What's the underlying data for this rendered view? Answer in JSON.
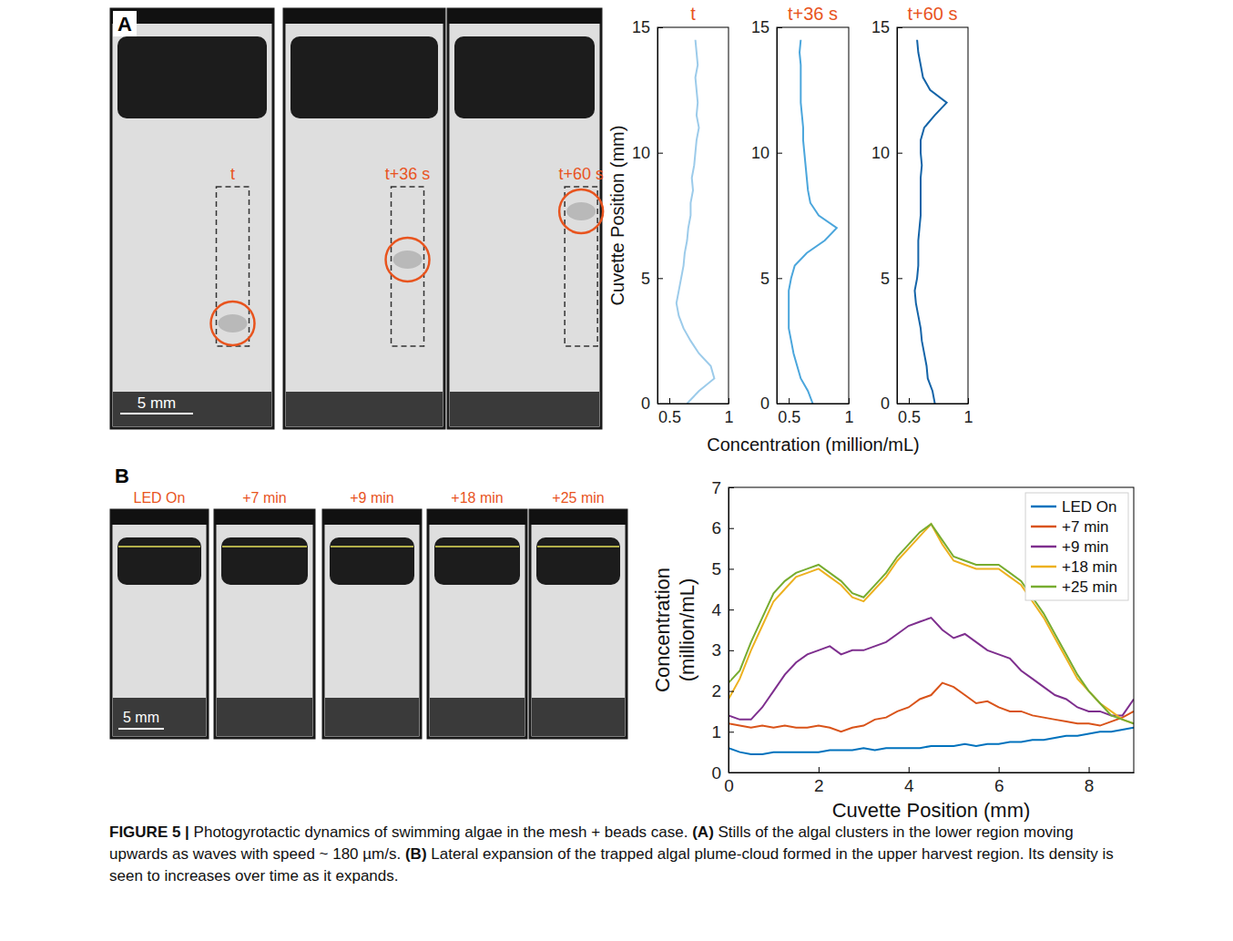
{
  "figure": {
    "panel_a": {
      "letter": "A",
      "stills": [
        "t",
        "t+36 s",
        "t+60 s"
      ],
      "scale_bar": "5 mm"
    },
    "panel_b": {
      "letter": "B",
      "stills": [
        "LED On",
        "+7 min",
        "+9 min",
        "+18 min",
        "+25 min"
      ],
      "scale_bar": "5 mm"
    },
    "caption": [
      "FIGURE 5 |",
      " Photogyrotactic dynamics of swimming algae in the mesh + beads case. ",
      "(A)",
      " Stills of the algal clusters in the lower region moving upwards as waves with speed ~ 180 µm/s. ",
      "(B)",
      " Lateral expansion of the trapped algal plume-cloud formed in the upper harvest region. Its density is seen to increases over time as it expands."
    ]
  },
  "chart_data": [
    {
      "type": "line",
      "orientation": "horizontal",
      "title": "t",
      "y_label": "Cuvette Position (mm)",
      "y": [
        0,
        0.5,
        1,
        1.5,
        2,
        2.5,
        3,
        3.5,
        4,
        4.5,
        5,
        5.5,
        6,
        6.5,
        7,
        7.5,
        8,
        8.5,
        9,
        9.5,
        10,
        10.5,
        11,
        11.5,
        12,
        12.5,
        13,
        13.5,
        14,
        14.5
      ],
      "series": [
        {
          "color": "#9ccbea",
          "values": [
            0.65,
            0.75,
            0.88,
            0.85,
            0.75,
            0.68,
            0.62,
            0.58,
            0.56,
            0.58,
            0.6,
            0.62,
            0.63,
            0.65,
            0.66,
            0.68,
            0.68,
            0.7,
            0.69,
            0.71,
            0.72,
            0.73,
            0.75,
            0.73,
            0.74,
            0.73,
            0.72,
            0.74,
            0.73,
            0.72
          ]
        }
      ],
      "xlim": [
        0.4,
        1
      ],
      "xticks": [
        0.5,
        1
      ],
      "ylim": [
        0,
        15
      ],
      "yticks": [
        0,
        5,
        10,
        15
      ]
    },
    {
      "type": "line",
      "orientation": "horizontal",
      "title": "t+36 s",
      "x_label": "Concentration (million/mL)",
      "y": [
        0,
        0.5,
        1,
        1.5,
        2,
        2.5,
        3,
        3.5,
        4,
        4.5,
        5,
        5.5,
        6,
        6.5,
        7,
        7.5,
        8,
        8.5,
        9,
        9.5,
        10,
        10.5,
        11,
        11.5,
        12,
        12.5,
        13,
        13.5,
        14,
        14.5
      ],
      "series": [
        {
          "color": "#4ba6dc",
          "values": [
            0.7,
            0.66,
            0.6,
            0.57,
            0.54,
            0.52,
            0.5,
            0.5,
            0.5,
            0.5,
            0.52,
            0.55,
            0.65,
            0.8,
            0.9,
            0.75,
            0.68,
            0.66,
            0.65,
            0.64,
            0.63,
            0.62,
            0.62,
            0.61,
            0.6,
            0.6,
            0.6,
            0.6,
            0.59,
            0.6
          ]
        }
      ],
      "xlim": [
        0.4,
        1
      ],
      "xticks": [
        0.5,
        1
      ],
      "ylim": [
        0,
        15
      ],
      "yticks": [
        0,
        5,
        10,
        15
      ]
    },
    {
      "type": "line",
      "orientation": "horizontal",
      "title": "t+60 s",
      "y": [
        0,
        0.5,
        1,
        1.5,
        2,
        2.5,
        3,
        3.5,
        4,
        4.5,
        5,
        5.5,
        6,
        6.5,
        7,
        7.5,
        8,
        8.5,
        9,
        9.5,
        10,
        10.5,
        11,
        11.5,
        12,
        12.5,
        13,
        13.5,
        14,
        14.5
      ],
      "series": [
        {
          "color": "#1464a8",
          "values": [
            0.72,
            0.7,
            0.66,
            0.65,
            0.63,
            0.61,
            0.6,
            0.58,
            0.56,
            0.55,
            0.57,
            0.58,
            0.58,
            0.58,
            0.59,
            0.6,
            0.6,
            0.6,
            0.6,
            0.61,
            0.6,
            0.6,
            0.63,
            0.72,
            0.82,
            0.68,
            0.62,
            0.6,
            0.58,
            0.57
          ]
        }
      ],
      "xlim": [
        0.4,
        1
      ],
      "xticks": [
        0.5,
        1
      ],
      "ylim": [
        0,
        15
      ],
      "yticks": [
        0,
        5,
        10,
        15
      ]
    },
    {
      "type": "line",
      "x_label": "Cuvette Position (mm)",
      "y_label": "Concentration (million/mL)",
      "x": [
        0,
        0.25,
        0.5,
        0.75,
        1,
        1.25,
        1.5,
        1.75,
        2,
        2.25,
        2.5,
        2.75,
        3,
        3.25,
        3.5,
        3.75,
        4,
        4.25,
        4.5,
        4.75,
        5,
        5.25,
        5.5,
        5.75,
        6,
        6.25,
        6.5,
        6.75,
        7,
        7.25,
        7.5,
        7.75,
        8,
        8.25,
        8.5,
        8.75,
        9
      ],
      "series": [
        {
          "name": "LED On",
          "color": "#0072bd",
          "values": [
            0.6,
            0.5,
            0.45,
            0.45,
            0.5,
            0.5,
            0.5,
            0.5,
            0.5,
            0.55,
            0.55,
            0.55,
            0.6,
            0.55,
            0.6,
            0.6,
            0.6,
            0.6,
            0.65,
            0.65,
            0.65,
            0.7,
            0.65,
            0.7,
            0.7,
            0.75,
            0.75,
            0.8,
            0.8,
            0.85,
            0.9,
            0.9,
            0.95,
            1.0,
            1.0,
            1.05,
            1.1
          ]
        },
        {
          "name": "+7 min",
          "color": "#d95319",
          "values": [
            1.2,
            1.15,
            1.1,
            1.15,
            1.1,
            1.15,
            1.1,
            1.1,
            1.15,
            1.1,
            1.0,
            1.1,
            1.15,
            1.3,
            1.35,
            1.5,
            1.6,
            1.8,
            1.9,
            2.2,
            2.1,
            1.9,
            1.7,
            1.75,
            1.6,
            1.5,
            1.5,
            1.4,
            1.35,
            1.3,
            1.25,
            1.2,
            1.2,
            1.15,
            1.25,
            1.35,
            1.5
          ]
        },
        {
          "name": "+9 min",
          "color": "#7e2f8e",
          "values": [
            1.4,
            1.3,
            1.3,
            1.6,
            2.0,
            2.4,
            2.7,
            2.9,
            3.0,
            3.1,
            2.9,
            3.0,
            3.0,
            3.1,
            3.2,
            3.4,
            3.6,
            3.7,
            3.8,
            3.5,
            3.3,
            3.4,
            3.2,
            3.0,
            2.9,
            2.8,
            2.5,
            2.3,
            2.1,
            1.9,
            1.8,
            1.6,
            1.5,
            1.5,
            1.4,
            1.4,
            1.8
          ]
        },
        {
          "name": "+18 min",
          "color": "#edb120",
          "values": [
            1.8,
            2.3,
            3.0,
            3.6,
            4.2,
            4.5,
            4.8,
            4.9,
            5.0,
            4.8,
            4.6,
            4.3,
            4.2,
            4.5,
            4.8,
            5.2,
            5.5,
            5.8,
            6.1,
            5.6,
            5.2,
            5.1,
            5.0,
            5.0,
            5.0,
            4.8,
            4.6,
            4.2,
            3.8,
            3.3,
            2.8,
            2.3,
            2.0,
            1.7,
            1.5,
            1.3,
            1.2
          ]
        },
        {
          "name": "+25 min",
          "color": "#77ac30",
          "values": [
            2.2,
            2.5,
            3.2,
            3.8,
            4.4,
            4.7,
            4.9,
            5.0,
            5.1,
            4.9,
            4.7,
            4.4,
            4.3,
            4.6,
            4.9,
            5.3,
            5.6,
            5.9,
            6.1,
            5.7,
            5.3,
            5.2,
            5.1,
            5.1,
            5.1,
            4.9,
            4.7,
            4.3,
            3.9,
            3.4,
            2.9,
            2.4,
            2.0,
            1.7,
            1.4,
            1.3,
            1.2
          ]
        }
      ],
      "xlim": [
        0,
        9
      ],
      "xticks": [
        0,
        2,
        4,
        6,
        8
      ],
      "ylim": [
        0,
        7
      ],
      "yticks": [
        0,
        1,
        2,
        3,
        4,
        5,
        6,
        7
      ],
      "legend": "upper right"
    }
  ]
}
